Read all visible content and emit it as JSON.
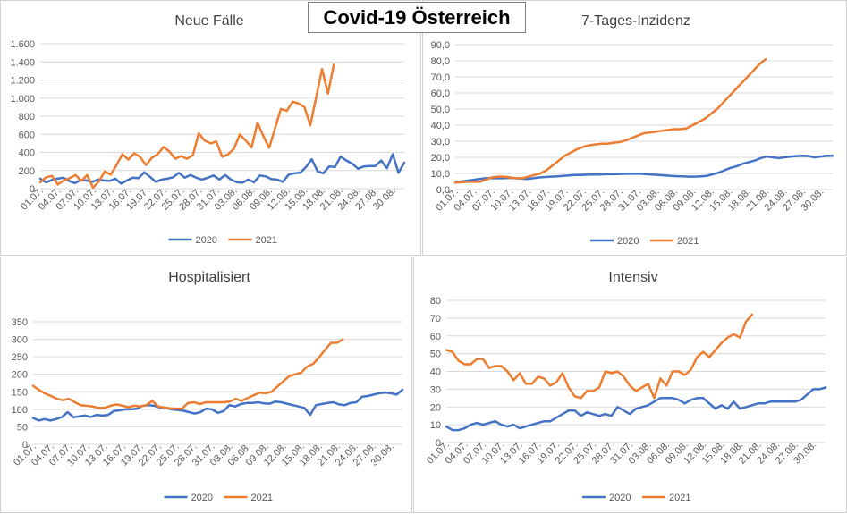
{
  "page_title": "Covid-19 Österreich",
  "colors": {
    "2020": "#4472c4",
    "2021": "#ed7d31",
    "grid": "#d9d9d9",
    "axis_text": "#595959"
  },
  "x_tick_labels": [
    "01.07.",
    "04.07.",
    "07.07.",
    "10.07.",
    "13.07.",
    "16.07.",
    "19.07.",
    "22.07.",
    "25.07.",
    "28.07.",
    "31.07.",
    "03.08.",
    "06.08.",
    "09.08.",
    "12.08.",
    "15.08.",
    "18.08.",
    "21.08.",
    "24.08.",
    "27.08.",
    "30.08."
  ],
  "chart_data": [
    {
      "type": "line",
      "title": "Neue Fälle",
      "ylim": [
        0,
        1600
      ],
      "y_ticks": [
        0,
        200,
        400,
        600,
        800,
        1000,
        1200,
        1400,
        1600
      ],
      "y_tick_labels": [
        "0",
        "200",
        "400",
        "600",
        "800",
        "1.000",
        "1.200",
        "1.400",
        "1.600"
      ],
      "series": [
        {
          "name": "2020",
          "values": [
            110,
            70,
            95,
            110,
            120,
            85,
            60,
            95,
            90,
            75,
            100,
            90,
            85,
            110,
            55,
            90,
            120,
            115,
            180,
            130,
            75,
            100,
            110,
            125,
            175,
            120,
            150,
            120,
            100,
            120,
            145,
            100,
            150,
            100,
            70,
            65,
            100,
            70,
            145,
            135,
            105,
            100,
            75,
            155,
            170,
            175,
            240,
            325,
            190,
            170,
            245,
            240,
            355,
            310,
            275,
            220,
            245,
            250,
            250,
            310,
            225,
            380,
            175,
            285
          ]
        },
        {
          "name": "2021",
          "values": [
            70,
            125,
            140,
            45,
            90,
            115,
            150,
            85,
            150,
            10,
            80,
            190,
            155,
            260,
            380,
            320,
            390,
            350,
            260,
            340,
            380,
            460,
            410,
            330,
            360,
            330,
            370,
            610,
            530,
            500,
            520,
            350,
            380,
            440,
            600,
            530,
            455,
            730,
            580,
            450,
            670,
            880,
            860,
            960,
            940,
            900,
            700,
            1010,
            1320,
            1050,
            1370
          ]
        }
      ]
    },
    {
      "type": "line",
      "title": "7-Tages-Inzidenz",
      "ylim": [
        0,
        90
      ],
      "y_ticks": [
        0,
        10,
        20,
        30,
        40,
        50,
        60,
        70,
        80,
        90
      ],
      "y_tick_labels": [
        "0,0",
        "10,0",
        "20,0",
        "30,0",
        "40,0",
        "50,0",
        "60,0",
        "70,0",
        "80,0",
        "90,0"
      ],
      "series": [
        {
          "name": "2020",
          "values": [
            4.5,
            5,
            5.5,
            6,
            6.5,
            7,
            7,
            7,
            7,
            7.2,
            7,
            6.8,
            6.5,
            7,
            7.5,
            7.8,
            8,
            8.2,
            8.5,
            8.8,
            9,
            9,
            9.2,
            9.3,
            9.3,
            9.5,
            9.5,
            9.6,
            9.7,
            9.8,
            9.8,
            9.8,
            9.5,
            9.2,
            9,
            8.8,
            8.5,
            8.3,
            8.2,
            8,
            8,
            8.2,
            8.5,
            9.5,
            10.5,
            12,
            13.5,
            14.5,
            16,
            17,
            18,
            19.5,
            20.5,
            20,
            19.5,
            20,
            20.5,
            20.8,
            21,
            20.8,
            20,
            20.5,
            21,
            21
          ]
        },
        {
          "name": "2021",
          "values": [
            4.2,
            4.5,
            4.8,
            4.8,
            4.8,
            6,
            7.5,
            8,
            8,
            7.5,
            7,
            7,
            8,
            9,
            10,
            12,
            15,
            18,
            21,
            23,
            25,
            26.5,
            27.5,
            28,
            28.5,
            28.5,
            29,
            29.5,
            30.5,
            32,
            33.5,
            35,
            35.5,
            36,
            36.5,
            37,
            37.5,
            37.5,
            38,
            40,
            42,
            44,
            47,
            50,
            54,
            58,
            62,
            66,
            70,
            74,
            78,
            81
          ]
        }
      ]
    },
    {
      "type": "line",
      "title": "Hospitalisiert",
      "ylim": [
        0,
        350
      ],
      "y_ticks": [
        0,
        50,
        100,
        150,
        200,
        250,
        300,
        350
      ],
      "y_tick_labels": [
        "0",
        "50",
        "100",
        "150",
        "200",
        "250",
        "300",
        "350"
      ],
      "series": [
        {
          "name": "2020",
          "values": [
            75,
            68,
            72,
            68,
            72,
            78,
            92,
            77,
            80,
            82,
            78,
            84,
            82,
            84,
            95,
            97,
            100,
            100,
            102,
            110,
            112,
            110,
            105,
            104,
            100,
            98,
            96,
            92,
            88,
            92,
            102,
            100,
            90,
            95,
            112,
            108,
            115,
            118,
            118,
            120,
            117,
            116,
            122,
            120,
            116,
            112,
            108,
            104,
            84,
            112,
            115,
            118,
            120,
            114,
            112,
            118,
            120,
            136,
            138,
            142,
            146,
            148,
            146,
            142,
            156
          ]
        },
        {
          "name": "2021",
          "values": [
            167,
            155,
            145,
            138,
            130,
            126,
            130,
            120,
            112,
            110,
            108,
            104,
            104,
            110,
            114,
            110,
            106,
            110,
            108,
            112,
            124,
            108,
            105,
            103,
            102,
            102,
            118,
            120,
            115,
            120,
            120,
            120,
            120,
            122,
            130,
            124,
            132,
            140,
            148,
            146,
            150,
            165,
            180,
            195,
            200,
            205,
            222,
            230,
            248,
            270,
            290,
            290,
            300
          ]
        }
      ]
    },
    {
      "type": "line",
      "title": "Intensiv",
      "ylim": [
        0,
        80
      ],
      "y_ticks": [
        0,
        10,
        20,
        30,
        40,
        50,
        60,
        70,
        80
      ],
      "y_tick_labels": [
        "0",
        "10",
        "20",
        "30",
        "40",
        "50",
        "60",
        "70",
        "80"
      ],
      "series": [
        {
          "name": "2020",
          "values": [
            9,
            7,
            7,
            8,
            10,
            11,
            10,
            11,
            12,
            10,
            9,
            10,
            8,
            9,
            10,
            11,
            12,
            12,
            14,
            16,
            18,
            18,
            15,
            17,
            16,
            15,
            16,
            15,
            20,
            18,
            16,
            19,
            20,
            21,
            23,
            25,
            25,
            25,
            24,
            22,
            24,
            25,
            25,
            22,
            19,
            21,
            19,
            23,
            19,
            20,
            21,
            22,
            22,
            23,
            23,
            23,
            23,
            23,
            24,
            27,
            30,
            30,
            31
          ]
        },
        {
          "name": "2021",
          "values": [
            52,
            51,
            46,
            44,
            44,
            47,
            47,
            42,
            43,
            43,
            40,
            35,
            39,
            33,
            33,
            37,
            36,
            32,
            34,
            39,
            31,
            26,
            25,
            29,
            29,
            31,
            40,
            39,
            40,
            37,
            32,
            29,
            31,
            33,
            25,
            36,
            32,
            40,
            40,
            38,
            41,
            48,
            51,
            48,
            52,
            56,
            59,
            61,
            59,
            68,
            72
          ]
        }
      ]
    }
  ]
}
